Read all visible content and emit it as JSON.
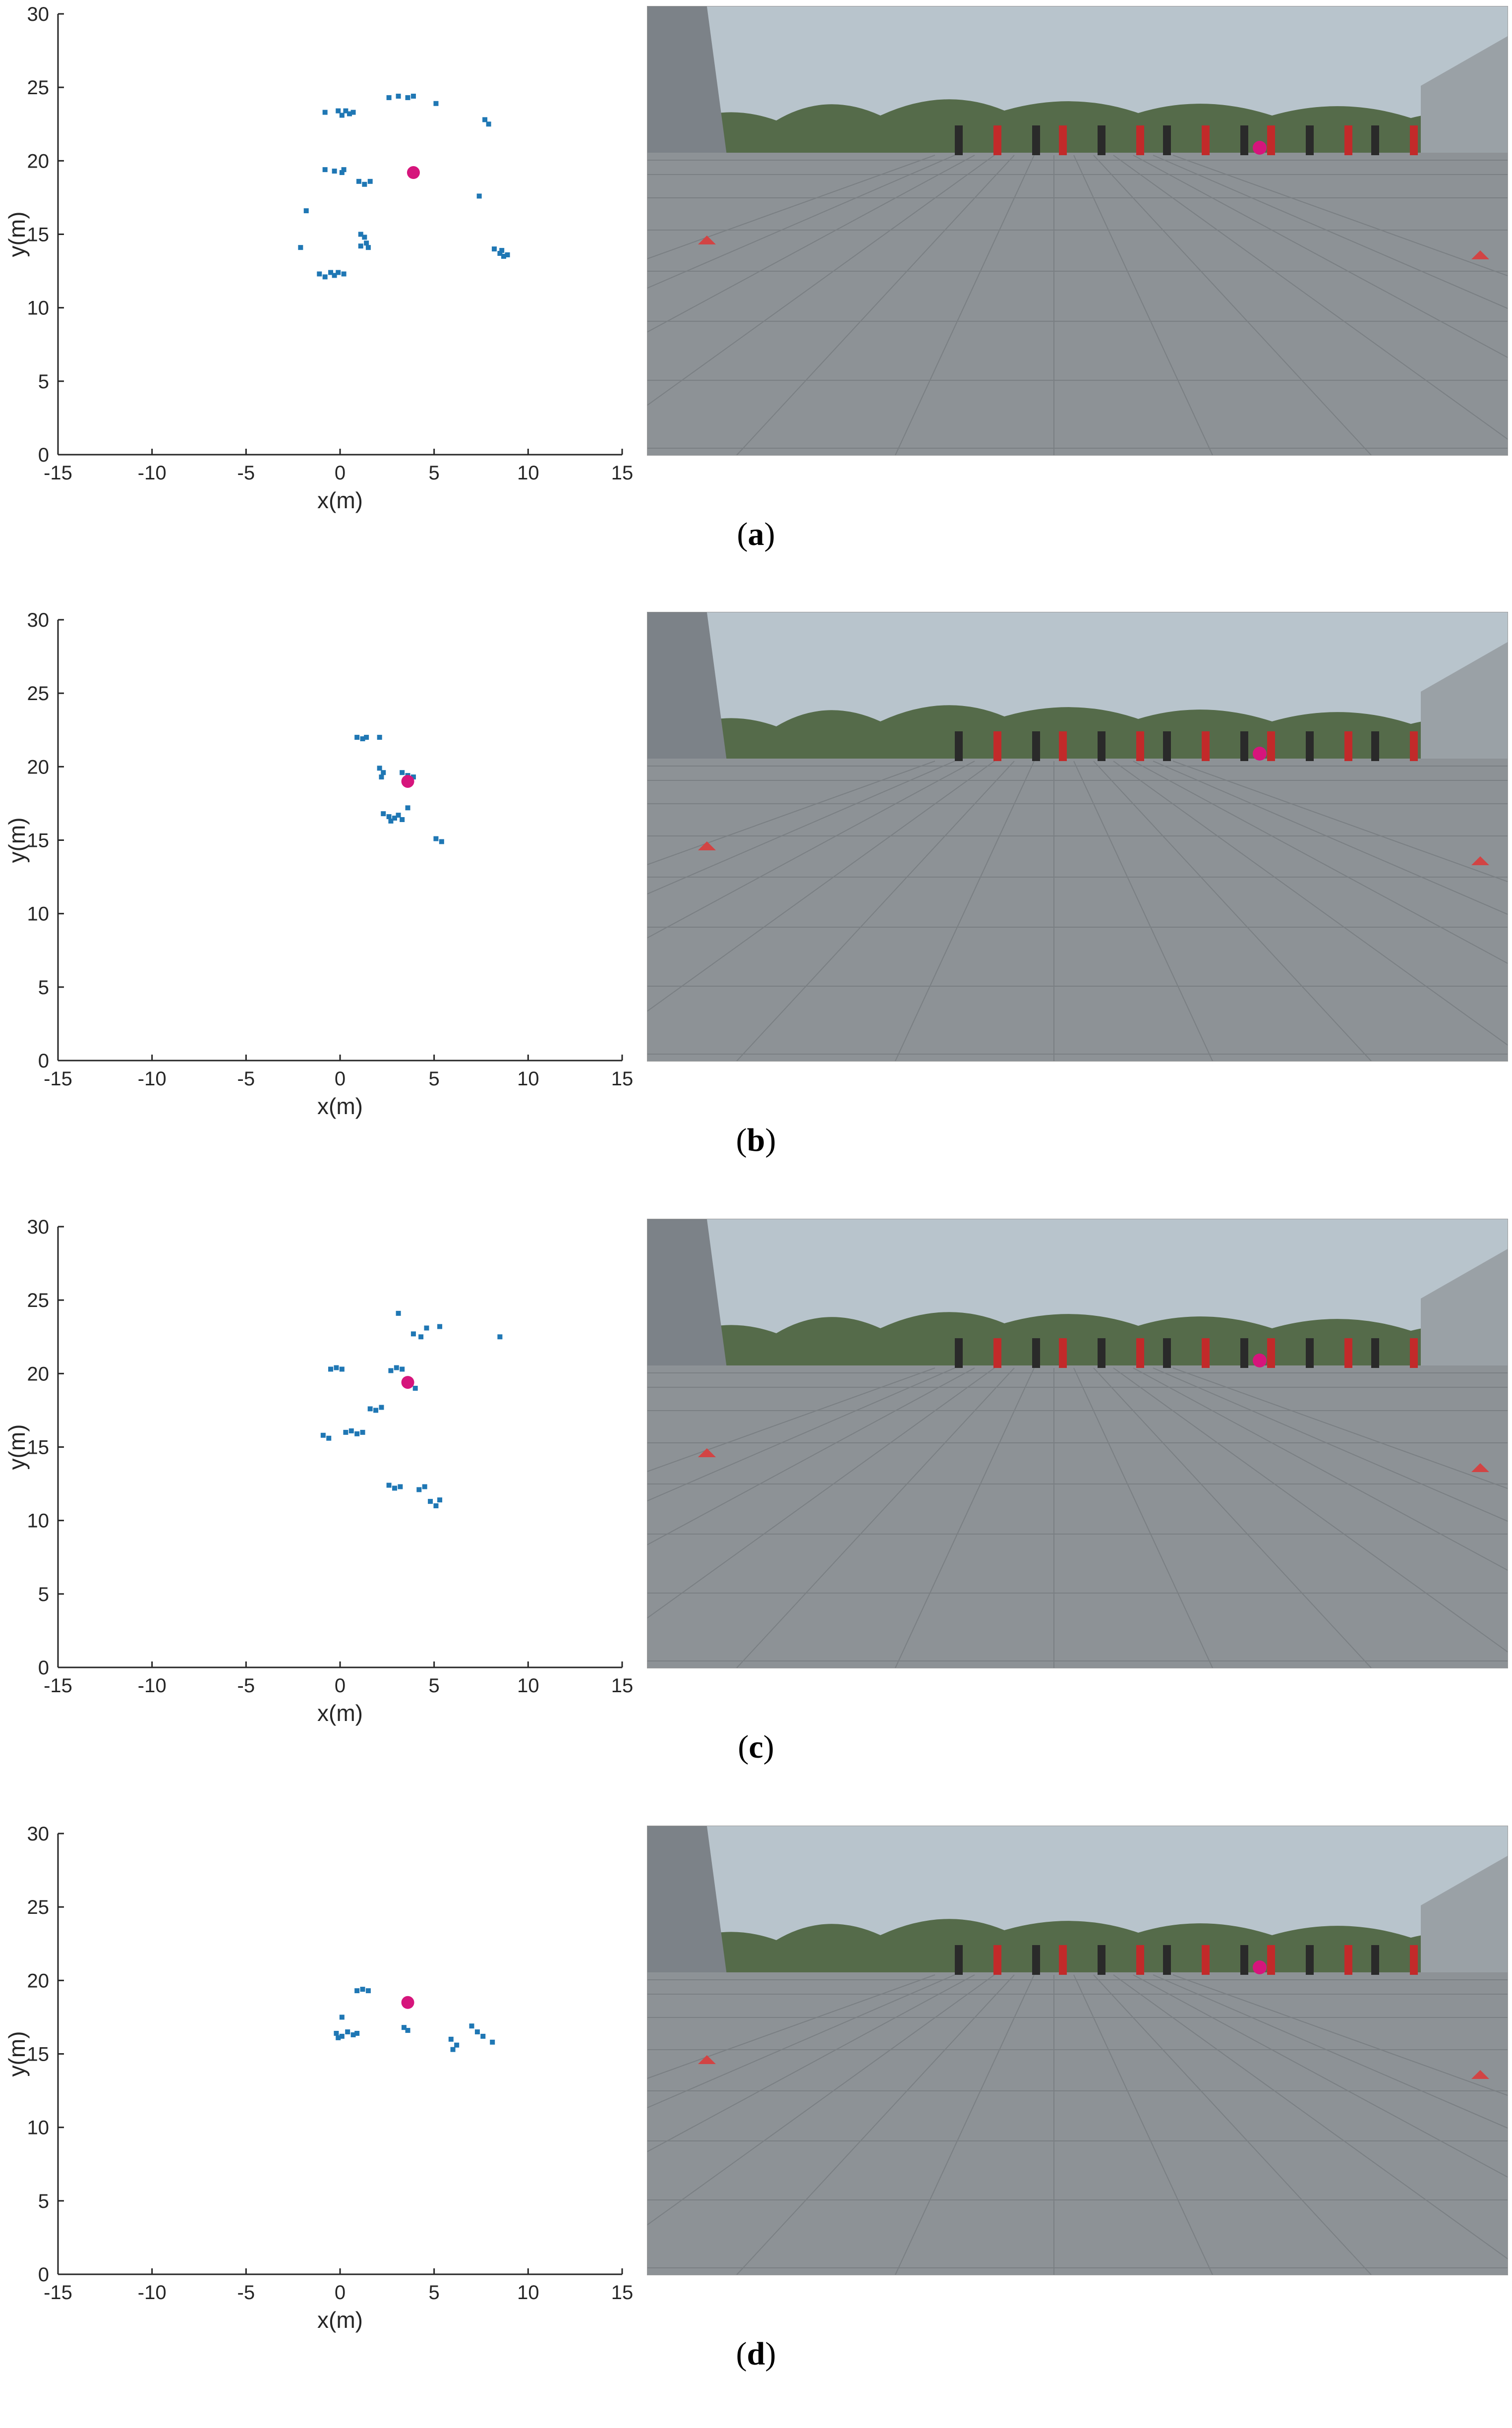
{
  "colors": {
    "detections": "#1f77b4",
    "target": "#d6157c",
    "axis": "#262626"
  },
  "chart_data": [
    {
      "type": "scatter",
      "panel": "a",
      "caption": "a",
      "xlabel": "x(m)",
      "ylabel": "y(m)",
      "xlim": [
        -15,
        15
      ],
      "ylim": [
        0,
        30
      ],
      "xticks": [
        "-15",
        "-10",
        "-5",
        "0",
        "5",
        "10",
        "15"
      ],
      "yticks": [
        "0",
        "5",
        "10",
        "15",
        "20",
        "25",
        "30"
      ],
      "grid": false,
      "series": [
        {
          "points": [
            [
              -0.8,
              23.3
            ],
            [
              -0.1,
              23.4
            ],
            [
              0.1,
              23.1
            ],
            [
              0.3,
              23.4
            ],
            [
              0.5,
              23.2
            ],
            [
              0.7,
              23.3
            ],
            [
              2.6,
              24.3
            ],
            [
              3.1,
              24.4
            ],
            [
              3.6,
              24.3
            ],
            [
              3.9,
              24.4
            ],
            [
              5.1,
              23.9
            ],
            [
              7.7,
              22.8
            ],
            [
              7.9,
              22.5
            ],
            [
              -0.8,
              19.4
            ],
            [
              -0.3,
              19.3
            ],
            [
              0.1,
              19.2
            ],
            [
              0.2,
              19.4
            ],
            [
              1.0,
              18.6
            ],
            [
              1.3,
              18.4
            ],
            [
              1.6,
              18.6
            ],
            [
              7.4,
              17.6
            ],
            [
              -1.8,
              16.6
            ],
            [
              1.1,
              15.0
            ],
            [
              1.3,
              14.8
            ],
            [
              1.4,
              14.4
            ],
            [
              1.1,
              14.2
            ],
            [
              1.5,
              14.1
            ],
            [
              -2.1,
              14.1
            ],
            [
              -1.1,
              12.3
            ],
            [
              -0.8,
              12.1
            ],
            [
              -0.5,
              12.4
            ],
            [
              -0.3,
              12.2
            ],
            [
              -0.1,
              12.4
            ],
            [
              0.2,
              12.3
            ],
            [
              8.2,
              14.0
            ],
            [
              8.5,
              13.7
            ],
            [
              8.7,
              13.5
            ],
            [
              8.6,
              13.9
            ],
            [
              8.9,
              13.6
            ]
          ]
        },
        {
          "points": [
            [
              3.9,
              19.2
            ]
          ]
        }
      ]
    },
    {
      "type": "scatter",
      "panel": "b",
      "caption": "b",
      "xlabel": "x(m)",
      "ylabel": "y(m)",
      "xlim": [
        -15,
        15
      ],
      "ylim": [
        0,
        30
      ],
      "xticks": [
        "-15",
        "-10",
        "-5",
        "0",
        "5",
        "10",
        "15"
      ],
      "yticks": [
        "0",
        "5",
        "10",
        "15",
        "20",
        "25",
        "30"
      ],
      "grid": false,
      "series": [
        {
          "points": [
            [
              0.9,
              22.0
            ],
            [
              1.2,
              21.9
            ],
            [
              1.4,
              22.0
            ],
            [
              2.1,
              22.0
            ],
            [
              2.1,
              19.9
            ],
            [
              2.3,
              19.6
            ],
            [
              2.2,
              19.3
            ],
            [
              3.3,
              19.6
            ],
            [
              3.6,
              19.4
            ],
            [
              3.9,
              19.3
            ],
            [
              2.3,
              16.8
            ],
            [
              2.6,
              16.6
            ],
            [
              2.9,
              16.5
            ],
            [
              3.1,
              16.7
            ],
            [
              3.3,
              16.4
            ],
            [
              2.7,
              16.3
            ],
            [
              3.6,
              17.2
            ],
            [
              5.1,
              15.1
            ],
            [
              5.4,
              14.9
            ]
          ]
        },
        {
          "points": [
            [
              3.6,
              19.0
            ]
          ]
        }
      ]
    },
    {
      "type": "scatter",
      "panel": "c",
      "caption": "c",
      "xlabel": "x(m)",
      "ylabel": "y(m)",
      "xlim": [
        -15,
        15
      ],
      "ylim": [
        0,
        30
      ],
      "xticks": [
        "-15",
        "-10",
        "-5",
        "0",
        "5",
        "10",
        "15"
      ],
      "yticks": [
        "0",
        "5",
        "10",
        "15",
        "20",
        "25",
        "30"
      ],
      "grid": false,
      "series": [
        {
          "points": [
            [
              3.1,
              24.1
            ],
            [
              3.9,
              22.7
            ],
            [
              4.3,
              22.5
            ],
            [
              4.6,
              23.1
            ],
            [
              5.3,
              23.2
            ],
            [
              8.5,
              22.5
            ],
            [
              -0.5,
              20.3
            ],
            [
              -0.2,
              20.4
            ],
            [
              0.1,
              20.3
            ],
            [
              2.7,
              20.2
            ],
            [
              3.0,
              20.4
            ],
            [
              3.3,
              20.3
            ],
            [
              4.0,
              19.0
            ],
            [
              1.6,
              17.6
            ],
            [
              1.9,
              17.5
            ],
            [
              2.2,
              17.7
            ],
            [
              -0.9,
              15.8
            ],
            [
              -0.6,
              15.6
            ],
            [
              0.3,
              16.0
            ],
            [
              0.6,
              16.1
            ],
            [
              0.9,
              15.9
            ],
            [
              1.2,
              16.0
            ],
            [
              2.6,
              12.4
            ],
            [
              2.9,
              12.2
            ],
            [
              3.2,
              12.3
            ],
            [
              4.2,
              12.1
            ],
            [
              4.5,
              12.3
            ],
            [
              4.8,
              11.3
            ],
            [
              5.1,
              11.0
            ],
            [
              5.3,
              11.4
            ]
          ]
        },
        {
          "points": [
            [
              3.6,
              19.4
            ]
          ]
        }
      ]
    },
    {
      "type": "scatter",
      "panel": "d",
      "caption": "d",
      "xlabel": "x(m)",
      "ylabel": "y(m)",
      "xlim": [
        -15,
        15
      ],
      "ylim": [
        0,
        30
      ],
      "xticks": [
        "-15",
        "-10",
        "-5",
        "0",
        "5",
        "10",
        "15"
      ],
      "yticks": [
        "0",
        "5",
        "10",
        "15",
        "20",
        "25",
        "30"
      ],
      "grid": false,
      "series": [
        {
          "points": [
            [
              0.9,
              19.3
            ],
            [
              1.2,
              19.4
            ],
            [
              1.5,
              19.3
            ],
            [
              0.1,
              17.5
            ],
            [
              -0.2,
              16.4
            ],
            [
              0.1,
              16.2
            ],
            [
              0.4,
              16.5
            ],
            [
              0.7,
              16.3
            ],
            [
              -0.1,
              16.1
            ],
            [
              0.9,
              16.4
            ],
            [
              3.4,
              16.8
            ],
            [
              3.6,
              16.6
            ],
            [
              5.9,
              16.0
            ],
            [
              6.2,
              15.6
            ],
            [
              6.0,
              15.3
            ],
            [
              7.0,
              16.9
            ],
            [
              7.3,
              16.5
            ],
            [
              7.6,
              16.2
            ],
            [
              8.1,
              15.8
            ]
          ]
        },
        {
          "points": [
            [
              3.6,
              18.5
            ]
          ]
        }
      ]
    }
  ]
}
